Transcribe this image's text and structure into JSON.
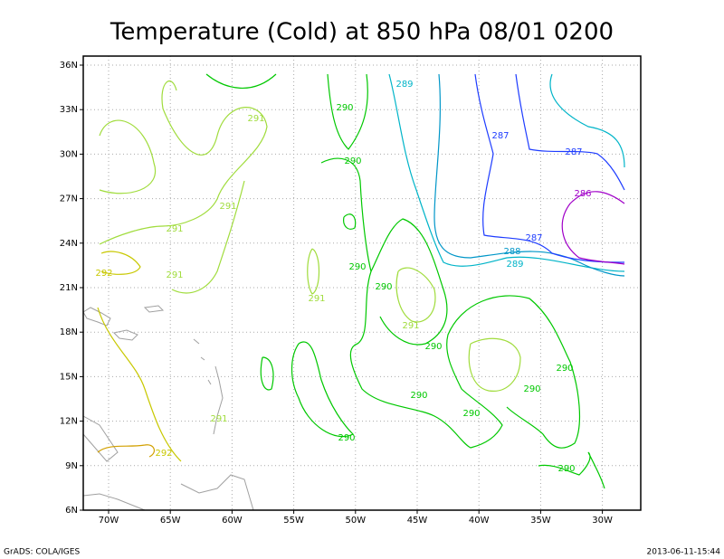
{
  "title": "Temperature (Cold) at 850 hPa 08/01 0200",
  "lat_labels": [
    "36N",
    "33N",
    "30N",
    "27N",
    "24N",
    "21N",
    "18N",
    "15N",
    "12N",
    "9N",
    "6N"
  ],
  "lon_labels": [
    "70W",
    "65W",
    "60W",
    "55W",
    "50W",
    "45W",
    "40W",
    "35W",
    "30W"
  ],
  "contour_labels": [
    "289",
    "290",
    "291",
    "287",
    "290",
    "287",
    "286",
    "291",
    "291",
    "287",
    "288",
    "289",
    "292",
    "291",
    "290",
    "290",
    "291",
    "291",
    "290",
    "290",
    "290",
    "290",
    "290",
    "291",
    "290",
    "292",
    "290"
  ],
  "footer": {
    "left": "GrADS: COLA/IGES",
    "right": "2013-06-11-15:44"
  }
}
